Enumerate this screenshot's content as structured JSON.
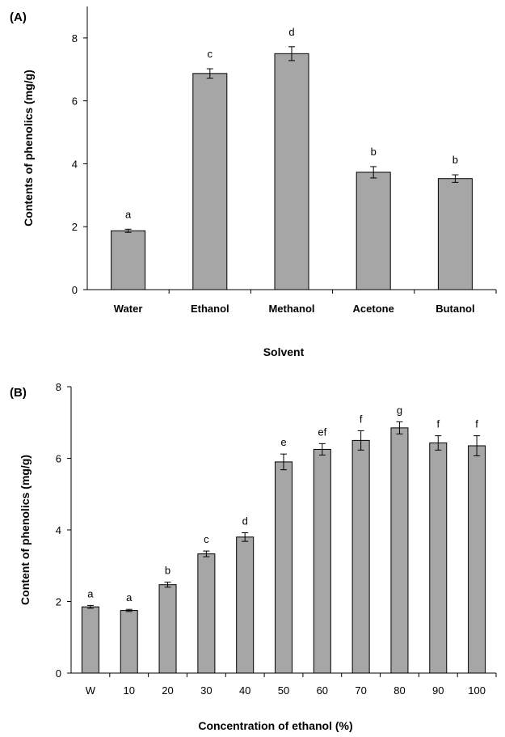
{
  "chart_data": [
    {
      "type": "bar",
      "panel_label": "(A)",
      "title": "",
      "xlabel": "Solvent",
      "ylabel": "Contents of phenolics (mg/g)",
      "ylim": [
        0,
        9
      ],
      "yticks": [
        0,
        2,
        4,
        6,
        8
      ],
      "categories": [
        "Water",
        "Ethanol",
        "Methanol",
        "Acetone",
        "Butanol"
      ],
      "values": [
        1.87,
        6.87,
        7.5,
        3.73,
        3.53
      ],
      "errors": [
        0.05,
        0.15,
        0.22,
        0.18,
        0.12
      ],
      "significance": [
        "a",
        "c",
        "d",
        "b",
        "b"
      ],
      "bar_color": "#a6a6a6",
      "grid": false,
      "legend": "none"
    },
    {
      "type": "bar",
      "panel_label": "(B)",
      "title": "",
      "xlabel": "Concentration  of  ethanol (%)",
      "ylabel": "Content of phenolics  (mg/g)",
      "ylim": [
        0,
        8
      ],
      "yticks": [
        0,
        2,
        4,
        6,
        8
      ],
      "categories": [
        "W",
        "10",
        "20",
        "30",
        "40",
        "50",
        "60",
        "70",
        "80",
        "90",
        "100"
      ],
      "values": [
        1.85,
        1.75,
        2.47,
        3.33,
        3.8,
        5.9,
        6.25,
        6.5,
        6.85,
        6.43,
        6.35
      ],
      "errors": [
        0.04,
        0.03,
        0.07,
        0.08,
        0.12,
        0.22,
        0.16,
        0.27,
        0.17,
        0.2,
        0.28
      ],
      "significance": [
        "a",
        "a",
        "b",
        "c",
        "d",
        "e",
        "ef",
        "f",
        "g",
        "f",
        "f"
      ],
      "bar_color": "#a6a6a6",
      "grid": false,
      "legend": "none"
    }
  ]
}
